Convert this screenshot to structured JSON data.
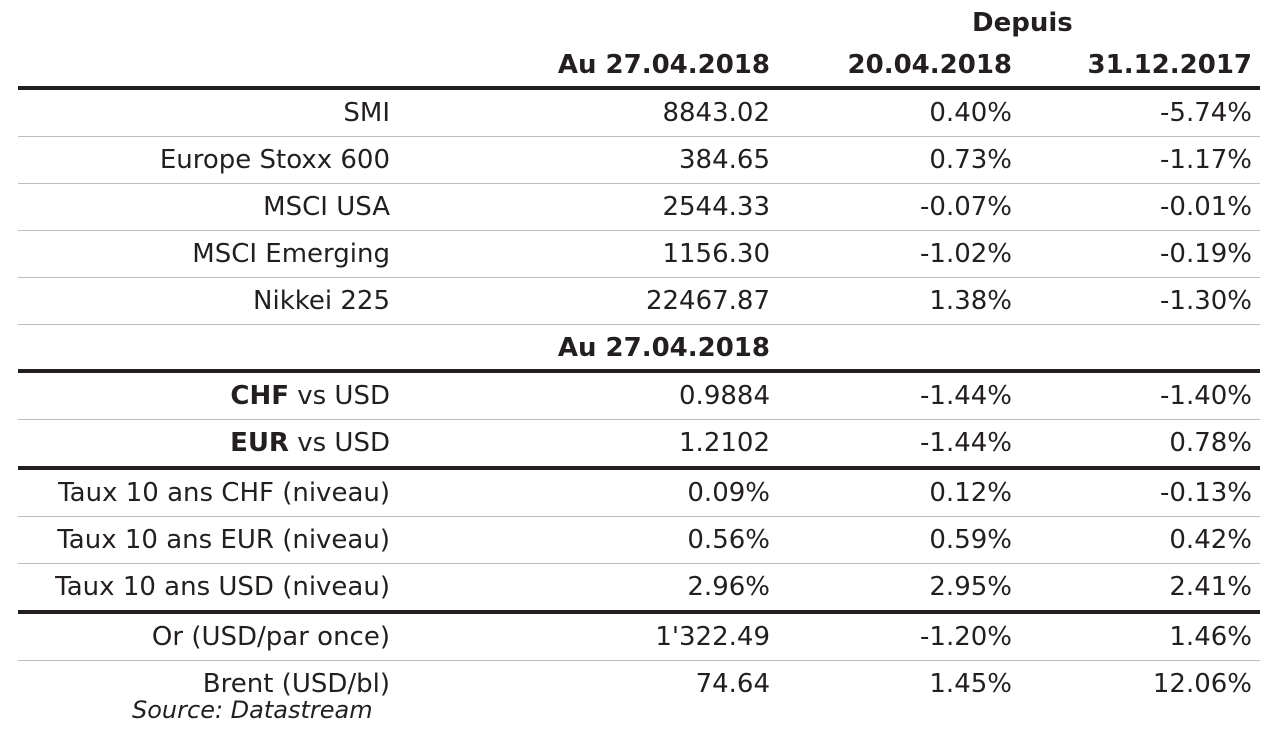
{
  "header": {
    "since_label": "Depuis",
    "col_value": "Au 27.04.2018",
    "col_week": "20.04.2018",
    "col_ytd": "31.12.2017"
  },
  "indices": [
    {
      "label": "SMI",
      "value": "8843.02",
      "week": "0.40%",
      "ytd": "-5.74%"
    },
    {
      "label": "Europe Stoxx 600",
      "value": "384.65",
      "week": "0.73%",
      "ytd": "-1.17%"
    },
    {
      "label": "MSCI USA",
      "value": "2544.33",
      "week": "-0.07%",
      "ytd": "-0.01%"
    },
    {
      "label": "MSCI Emerging",
      "value": "1156.30",
      "week": "-1.02%",
      "ytd": "-0.19%"
    },
    {
      "label": "Nikkei 225",
      "value": "22467.87",
      "week": "1.38%",
      "ytd": "-1.30%"
    }
  ],
  "mid_header": {
    "col_value": "Au 27.04.2018"
  },
  "currencies": [
    {
      "label_bold": "CHF",
      "label_rest": " vs USD",
      "value": "0.9884",
      "week": "-1.44%",
      "ytd": "-1.40%"
    },
    {
      "label_bold": "EUR",
      "label_rest": " vs USD",
      "value": "1.2102",
      "week": "-1.44%",
      "ytd": "0.78%"
    }
  ],
  "rates": [
    {
      "label": "Taux 10 ans CHF (niveau)",
      "value": "0.09%",
      "week": "0.12%",
      "ytd": "-0.13%"
    },
    {
      "label": "Taux 10 ans EUR (niveau)",
      "value": "0.56%",
      "week": "0.59%",
      "ytd": "0.42%"
    },
    {
      "label": "Taux 10 ans USD (niveau)",
      "value": "2.96%",
      "week": "2.95%",
      "ytd": "2.41%"
    }
  ],
  "commodities": [
    {
      "label": "Or (USD/par once)",
      "value": "1'322.49",
      "week": "-1.20%",
      "ytd": "1.46%"
    },
    {
      "label": "Brent (USD/bl)",
      "value": "74.64",
      "week": "1.45%",
      "ytd": "12.06%"
    }
  ],
  "source": "Source: Datastream"
}
